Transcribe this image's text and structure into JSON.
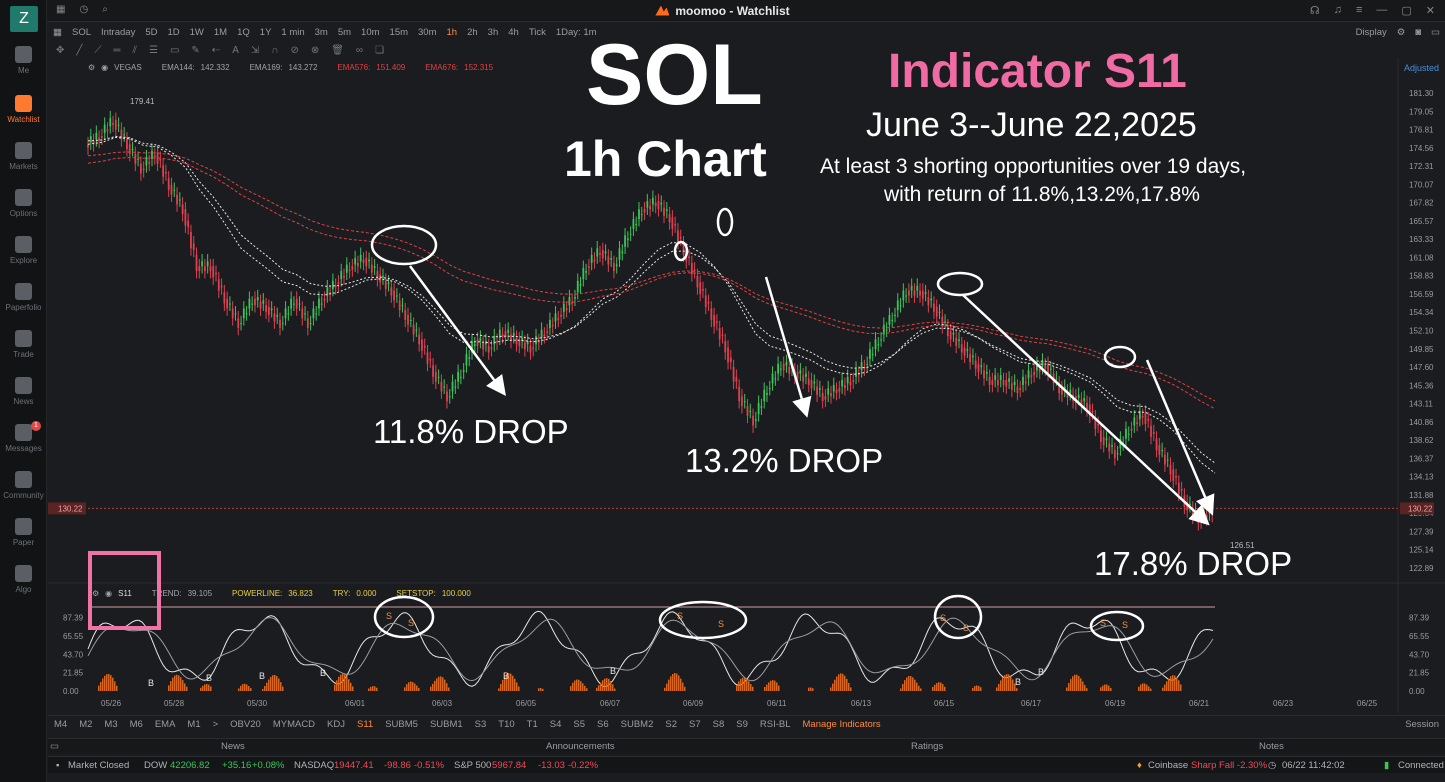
{
  "window": {
    "title": "moomoo - Watchlist"
  },
  "sidebar": {
    "logo_letter": "Z",
    "items": [
      {
        "label": "Me"
      },
      {
        "label": "Watchlist"
      },
      {
        "label": "Markets"
      },
      {
        "label": "Options"
      },
      {
        "label": "Explore"
      },
      {
        "label": "Paperfolio"
      },
      {
        "label": "Trade"
      },
      {
        "label": "News"
      },
      {
        "label": "Messages"
      },
      {
        "label": "Community"
      },
      {
        "label": "Paper"
      },
      {
        "label": "Algo"
      }
    ],
    "messages_badge": "1"
  },
  "toolbar": {
    "symbol": "SOL",
    "timeframes": [
      "Intraday",
      "5D",
      "1D",
      "1W",
      "1M",
      "1Q",
      "1Y",
      "1 min",
      "3m",
      "5m",
      "10m",
      "15m",
      "30m",
      "1h",
      "2h",
      "3h",
      "4h",
      "Tick",
      "1Day: 1m"
    ],
    "selected_timeframe": "1h",
    "display_label": "Display",
    "adjusted_label": "Adjusted"
  },
  "indicators_main": {
    "name": "VEGAS",
    "items": [
      {
        "label": "EMA144:",
        "value": "142.332",
        "color": "#e6e6e6"
      },
      {
        "label": "EMA169:",
        "value": "143.272",
        "color": "#e6e6e6"
      },
      {
        "label": "EMA576:",
        "value": "151.409",
        "color": "#e04040"
      },
      {
        "label": "EMA676:",
        "value": "152.315",
        "color": "#e04040"
      }
    ]
  },
  "indicators_sub": {
    "name": "S11",
    "items": [
      {
        "label": "TREND:",
        "value": "39.105",
        "color": "#9a9ca3"
      },
      {
        "label": "POWERLINE:",
        "value": "36.823",
        "color": "#e8d040"
      },
      {
        "label": "TRY:",
        "value": "0.000",
        "color": "#e8d040"
      },
      {
        "label": "SETSTOP:",
        "value": "100.000",
        "color": "#e8d040"
      }
    ]
  },
  "annotations": {
    "title": "SOL",
    "subtitle": "1h Chart",
    "headline": "Indicator S11",
    "date_range": "June 3--June 22,2025",
    "desc_line1": "At least 3 shorting opportunities over 19 days,",
    "desc_line2": "with return of 11.8%,13.2%,17.8%",
    "drop1": "11.8% DROP",
    "drop2": "13.2% DROP",
    "drop3": "17.8% DROP"
  },
  "chart_data": [
    {
      "type": "candlestick",
      "title": "SOL 1h",
      "y_ticks": [
        "181.30",
        "179.05",
        "176.81",
        "174.56",
        "172.31",
        "170.07",
        "167.82",
        "165.57",
        "163.33",
        "161.08",
        "158.83",
        "156.59",
        "154.34",
        "152.10",
        "149.85",
        "147.60",
        "145.36",
        "143.11",
        "140.86",
        "138.62",
        "136.37",
        "134.13",
        "131.88",
        "129.64",
        "127.39",
        "125.14",
        "122.89"
      ],
      "ylim": [
        122.89,
        181.3
      ],
      "x_ticks": [
        "05/26",
        "05/28",
        "05/30",
        "06/01",
        "06/03",
        "06/05",
        "06/07",
        "06/09",
        "06/11",
        "06/13",
        "06/15",
        "06/17",
        "06/19",
        "06/21",
        "06/23",
        "06/25"
      ],
      "high_label": "179.41",
      "low_label": "126.51",
      "last_price": "130.22",
      "close_path": [
        [
          0,
          175
        ],
        [
          1,
          176
        ],
        [
          2,
          178
        ],
        [
          3,
          175
        ],
        [
          4,
          172
        ],
        [
          5,
          174
        ],
        [
          6,
          170
        ],
        [
          7,
          167
        ],
        [
          8,
          160
        ],
        [
          9,
          160
        ],
        [
          10,
          156
        ],
        [
          11,
          153
        ],
        [
          12,
          156
        ],
        [
          13,
          155
        ],
        [
          14,
          153
        ],
        [
          15,
          156
        ],
        [
          16,
          153
        ],
        [
          17,
          156
        ],
        [
          18,
          158
        ],
        [
          19,
          160
        ],
        [
          20,
          161
        ],
        [
          21,
          159
        ],
        [
          22,
          157
        ],
        [
          23,
          154
        ],
        [
          24,
          151
        ],
        [
          25,
          147
        ],
        [
          26,
          144
        ],
        [
          27,
          147
        ],
        [
          28,
          151
        ],
        [
          29,
          150
        ],
        [
          30,
          152
        ],
        [
          31,
          151
        ],
        [
          32,
          150
        ],
        [
          33,
          152
        ],
        [
          34,
          154
        ],
        [
          35,
          156
        ],
        [
          36,
          160
        ],
        [
          37,
          162
        ],
        [
          38,
          160
        ],
        [
          39,
          164
        ],
        [
          40,
          167
        ],
        [
          41,
          168
        ],
        [
          42,
          166
        ],
        [
          43,
          162
        ],
        [
          44,
          158
        ],
        [
          45,
          154
        ],
        [
          46,
          150
        ],
        [
          47,
          144
        ],
        [
          48,
          141
        ],
        [
          49,
          145
        ],
        [
          50,
          148
        ],
        [
          51,
          147
        ],
        [
          52,
          146
        ],
        [
          53,
          144
        ],
        [
          54,
          145
        ],
        [
          55,
          146
        ],
        [
          56,
          148
        ],
        [
          57,
          151
        ],
        [
          58,
          154
        ],
        [
          59,
          157
        ],
        [
          60,
          157
        ],
        [
          61,
          155
        ],
        [
          62,
          152
        ],
        [
          63,
          150
        ],
        [
          64,
          148
        ],
        [
          65,
          146
        ],
        [
          66,
          146
        ],
        [
          67,
          145
        ],
        [
          68,
          147
        ],
        [
          69,
          148
        ],
        [
          70,
          145
        ],
        [
          71,
          144
        ],
        [
          72,
          143
        ],
        [
          73,
          139
        ],
        [
          74,
          137
        ],
        [
          75,
          140
        ],
        [
          76,
          142
        ],
        [
          77,
          138
        ],
        [
          78,
          135
        ],
        [
          79,
          131
        ],
        [
          80,
          129
        ],
        [
          81,
          130
        ]
      ],
      "series": [
        {
          "name": "EMA144",
          "color": "#e6e6e6"
        },
        {
          "name": "EMA169",
          "color": "#e6e6e6"
        },
        {
          "name": "EMA576",
          "color": "#e04040"
        },
        {
          "name": "EMA676",
          "color": "#e04040"
        }
      ]
    },
    {
      "type": "oscillator",
      "title": "S11",
      "y_ticks": [
        "87.39",
        "65.55",
        "43.70",
        "21.85",
        "0.00"
      ],
      "ylim": [
        0,
        100
      ],
      "sell_markers": 8,
      "buy_markers": 8
    }
  ],
  "bottom_tabs": {
    "items": [
      "M4",
      "M2",
      "M3",
      "M6",
      "EMA",
      "M1",
      ">",
      "OBV20",
      "MYMACD",
      "KDJ",
      "S11",
      "SUBM5",
      "SUBM1",
      "S3",
      "T10",
      "T1",
      "S4",
      "S5",
      "S6",
      "SUBM2",
      "S2",
      "S7",
      "S8",
      "S9",
      "RSI-BL"
    ],
    "selected": "S11",
    "manage": "Manage Indicators",
    "session": "Session"
  },
  "panels": {
    "news": "News",
    "announcements": "Announcements",
    "ratings": "Ratings",
    "notes": "Notes"
  },
  "status": {
    "market": "Market Closed",
    "dow_label": "DOW",
    "dow_value": "42206.82",
    "dow_chg": "+35.16",
    "dow_pct": "+0.08%",
    "nasdaq_label": "NASDAQ",
    "nasdaq_value": "19447.41",
    "nasdaq_chg": "-98.86",
    "nasdaq_pct": "-0.51%",
    "sp_label": "S&P 500",
    "sp_value": "5967.84",
    "sp_chg": "-13.03",
    "sp_pct": "-0.22%",
    "alert_src": "Coinbase",
    "alert_text": "Sharp Fall -2.30%",
    "datetime": "06/22 11:42:02",
    "conn": "Connected"
  }
}
